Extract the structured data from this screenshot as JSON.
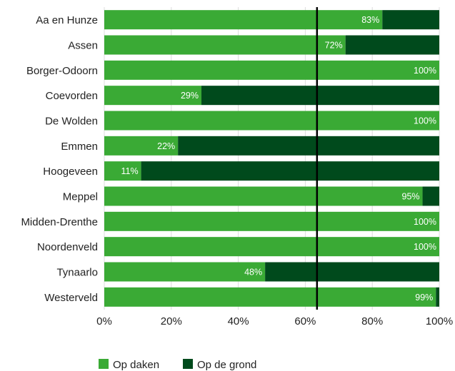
{
  "chart_data": {
    "type": "bar",
    "orientation": "horizontal",
    "stacked": true,
    "categories": [
      "Aa en Hunze",
      "Assen",
      "Borger-Odoorn",
      "Coevorden",
      "De Wolden",
      "Emmen",
      "Hoogeveen",
      "Meppel",
      "Midden-Drenthe",
      "Noordenveld",
      "Tynaarlo",
      "Westerveld"
    ],
    "series": [
      {
        "name": "Op daken",
        "color": "#3aaa35",
        "values": [
          83,
          72,
          100,
          29,
          100,
          22,
          11,
          95,
          100,
          100,
          48,
          99
        ],
        "labels": [
          "83%",
          "72%",
          "100%",
          "29%",
          "100%",
          "22%",
          "11%",
          "95%",
          "100%",
          "100%",
          "48%",
          "99%"
        ]
      },
      {
        "name": "Op de grond",
        "color": "#004a1c",
        "values": [
          17,
          28,
          0,
          71,
          0,
          78,
          89,
          5,
          0,
          0,
          52,
          1
        ]
      }
    ],
    "xlim": [
      0,
      100
    ],
    "xticks": [
      0,
      20,
      40,
      60,
      80,
      100
    ],
    "xtick_labels": [
      "0%",
      "20%",
      "40%",
      "60%",
      "80%",
      "100%"
    ],
    "reference_line": 63.5,
    "grid": true,
    "legend_position": "bottom",
    "title": "",
    "xlabel": "",
    "ylabel": ""
  }
}
